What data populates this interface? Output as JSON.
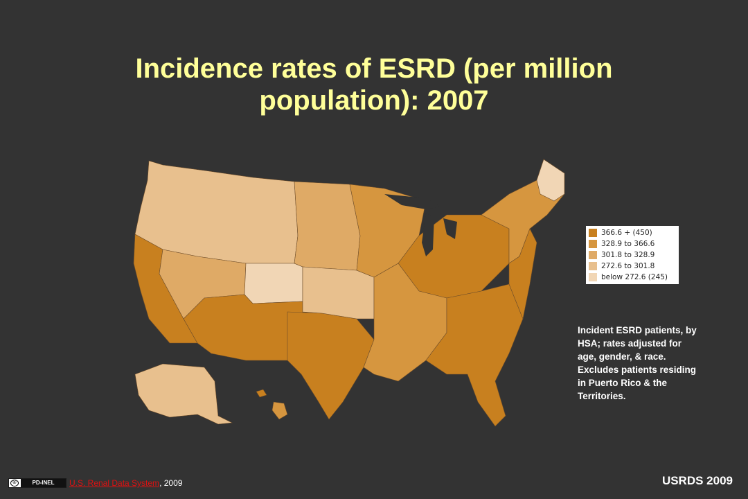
{
  "title": "Incidence rates of ESRD (per million population): 2007",
  "legend": {
    "entries": [
      {
        "label": "366.6 + (450)",
        "color": "#c8801f"
      },
      {
        "label": "328.9 to 366.6",
        "color": "#d6963f"
      },
      {
        "label": "301.8 to 328.9",
        "color": "#dfaa66"
      },
      {
        "label": "272.6 to 301.8",
        "color": "#e8c08e"
      },
      {
        "label": "below 272.6 (245)",
        "color": "#f1d6b5"
      }
    ]
  },
  "note": "Incident ESRD patients, by HSA; rates adjusted for age, gender, & race. Excludes patients residing in Puerto Rico & the Territories.",
  "footer": {
    "badge_text": "PD-INEL",
    "source_link": "U.S. Renal Data System",
    "source_year": ", 2009"
  },
  "brand": "USRDS 2009"
}
